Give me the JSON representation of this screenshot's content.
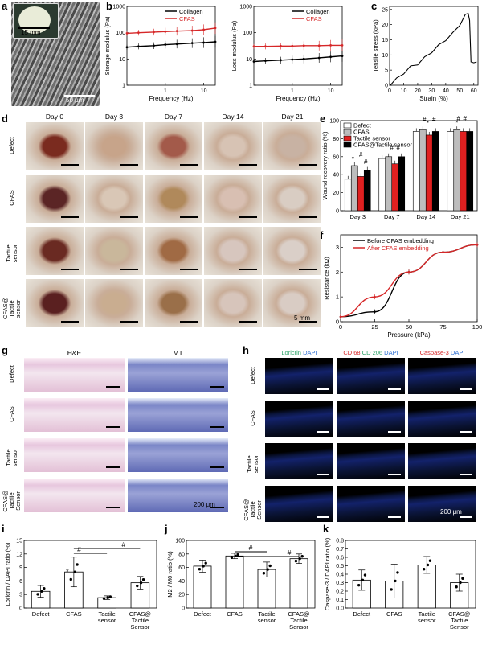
{
  "panel_labels": [
    "a",
    "b",
    "c",
    "d",
    "e",
    "f",
    "g",
    "h",
    "i",
    "j",
    "k"
  ],
  "panel_a": {
    "inset_scale": "15 mm",
    "scale": "50 μm"
  },
  "panel_d": {
    "columns": [
      "Day 0",
      "Day 3",
      "Day 7",
      "Day 14",
      "Day 21"
    ],
    "rows": [
      "Defect",
      "CFAS",
      "Tactile sensor",
      "CFAS@ Tactile sensor"
    ],
    "scale": "5 mm"
  },
  "panel_g": {
    "columns": [
      "H&E",
      "MT"
    ],
    "rows": [
      "Defect",
      "CFAS",
      "Tactile sensor",
      "CFAS@ Tactile Sensor"
    ],
    "scale": "200 μm"
  },
  "panel_h": {
    "col1": [
      "Loricrin",
      "DAPI"
    ],
    "col2": [
      "CD 68",
      "CD 206",
      "DAPI"
    ],
    "col3": [
      "Caspase-3",
      "DAPI"
    ],
    "rows": [
      "Defect",
      "CFAS",
      "Tactile sensor",
      "CFAS@ Tactile Sensor"
    ],
    "scale": "200 μm"
  },
  "chart_data": [
    {
      "panel": "b-left",
      "type": "line",
      "xlabel": "Frequency (Hz)",
      "ylabel": "Storage modulus (Pa)",
      "xscale": "log",
      "yscale": "log",
      "xlim": [
        0.1,
        20
      ],
      "ylim": [
        1,
        1000
      ],
      "x_ticks": [
        "1",
        "10"
      ],
      "y_ticks": [
        "1",
        "10",
        "100",
        "1000"
      ],
      "legend": [
        "Collagen",
        "CFAS"
      ],
      "legend_position": "top-right",
      "series": [
        {
          "name": "Collagen",
          "color": "#000000",
          "x": [
            0.1,
            0.2,
            0.5,
            1,
            2,
            5,
            10,
            20
          ],
          "y": [
            28,
            30,
            32,
            35,
            37,
            40,
            42,
            45
          ]
        },
        {
          "name": "CFAS",
          "color": "#d62728",
          "x": [
            0.1,
            0.2,
            0.5,
            1,
            2,
            5,
            10,
            20
          ],
          "y": [
            95,
            100,
            105,
            110,
            115,
            120,
            130,
            150
          ]
        }
      ]
    },
    {
      "panel": "b-right",
      "type": "line",
      "xlabel": "Frequency (Hz)",
      "ylabel": "Loss modulus (Pa)",
      "xscale": "log",
      "yscale": "log",
      "xlim": [
        0.1,
        20
      ],
      "ylim": [
        1,
        1000
      ],
      "x_ticks": [
        "1",
        "10"
      ],
      "y_ticks": [
        "1",
        "10",
        "100",
        "1000"
      ],
      "legend": [
        "Collagen",
        "CFAS"
      ],
      "legend_position": "top-right",
      "series": [
        {
          "name": "Collagen",
          "color": "#000000",
          "x": [
            0.1,
            0.2,
            0.5,
            1,
            2,
            5,
            10,
            20
          ],
          "y": [
            8,
            8.5,
            9,
            9.5,
            10,
            11,
            12,
            13
          ]
        },
        {
          "name": "CFAS",
          "color": "#d62728",
          "x": [
            0.1,
            0.2,
            0.5,
            1,
            2,
            5,
            10,
            20
          ],
          "y": [
            30,
            30,
            31,
            31,
            32,
            32,
            33,
            33
          ]
        }
      ]
    },
    {
      "panel": "c",
      "type": "line",
      "xlabel": "Strain (%)",
      "ylabel": "Tensile stress (kPa)",
      "xlim": [
        0,
        63
      ],
      "ylim": [
        0,
        26
      ],
      "x_ticks": [
        "0",
        "10",
        "20",
        "30",
        "40",
        "50",
        "60"
      ],
      "y_ticks": [
        "0",
        "5",
        "10",
        "15",
        "20",
        "25"
      ],
      "series": [
        {
          "name": "",
          "color": "#000000",
          "x": [
            0,
            5,
            10,
            15,
            20,
            25,
            30,
            35,
            40,
            45,
            50,
            54,
            56,
            57,
            58,
            60,
            62
          ],
          "y": [
            0,
            2,
            4,
            6,
            7,
            9,
            11,
            13,
            15,
            17,
            20,
            23,
            24,
            21,
            8,
            7,
            8
          ]
        }
      ]
    },
    {
      "panel": "e",
      "type": "bar",
      "ylabel": "Wound recovery ratio (%)",
      "ylim": [
        0,
        100
      ],
      "y_ticks": [
        "0",
        "20",
        "40",
        "60",
        "80",
        "100"
      ],
      "categories": [
        "Day 3",
        "Day 7",
        "Day 14",
        "Day 21"
      ],
      "legend": [
        "Defect",
        "CFAS",
        "Tactile sensor",
        "CFAS@Tactile sensor"
      ],
      "legend_position": "top-left",
      "series": [
        {
          "name": "Defect",
          "color": "#ffffff",
          "values": [
            35,
            58,
            88,
            88
          ]
        },
        {
          "name": "CFAS",
          "color": "#bdbdbd",
          "values": [
            50,
            60,
            90,
            90
          ]
        },
        {
          "name": "Tactile sensor",
          "color": "#e02020",
          "values": [
            38,
            52,
            84,
            88
          ]
        },
        {
          "name": "CFAS@Tactile sensor",
          "color": "#000000",
          "values": [
            45,
            60,
            88,
            88
          ]
        }
      ],
      "annotations": [
        "*",
        "#",
        "#",
        "#",
        "#",
        "#",
        "*",
        "#",
        "#",
        "*",
        "#"
      ]
    },
    {
      "panel": "f",
      "type": "line",
      "xlabel": "Pressure (kPa)",
      "ylabel": "Resistance (kΩ)",
      "xlim": [
        0,
        100
      ],
      "ylim": [
        0,
        3.5
      ],
      "x_ticks": [
        "0",
        "25",
        "50",
        "75",
        "100"
      ],
      "y_ticks": [
        "0",
        "1",
        "2",
        "3"
      ],
      "legend": [
        "Before CFAS embedding",
        "After CFAS embedding"
      ],
      "legend_position": "top-left",
      "series": [
        {
          "name": "Before CFAS embedding",
          "color": "#000000",
          "x": [
            0,
            25,
            50,
            75,
            100
          ],
          "y": [
            0.2,
            0.4,
            2.0,
            2.8,
            3.1
          ]
        },
        {
          "name": "After CFAS embedding",
          "color": "#d62728",
          "x": [
            0,
            25,
            50,
            75,
            100
          ],
          "y": [
            0.2,
            1.0,
            2.0,
            2.8,
            3.1
          ]
        }
      ]
    },
    {
      "panel": "i",
      "type": "bar",
      "ylabel": "Loricrin / DAPI ratio (%)",
      "ylim": [
        0,
        15
      ],
      "y_ticks": [
        "0",
        "3",
        "6",
        "9",
        "12",
        "15"
      ],
      "categories": [
        "Defect",
        "CFAS",
        "Tactile sensor",
        "CFAS@ Tactile Sensor"
      ],
      "values": [
        3.7,
        8.0,
        2.3,
        5.6
      ],
      "errors": [
        1.3,
        3.3,
        0.4,
        1.4
      ],
      "annotations": [
        "*",
        "#",
        "#"
      ]
    },
    {
      "panel": "j",
      "type": "bar",
      "ylabel": "M2 / M0 ratio (%)",
      "ylim": [
        0,
        100
      ],
      "y_ticks": [
        "0",
        "20",
        "40",
        "60",
        "80",
        "100"
      ],
      "categories": [
        "Defect",
        "CFAS",
        "Tactile sensor",
        "CFAS@ Tactile Sensor"
      ],
      "values": [
        62,
        77,
        57,
        73
      ],
      "errors": [
        9,
        4,
        11,
        7
      ],
      "annotations": [
        "#",
        "#"
      ]
    },
    {
      "panel": "k",
      "type": "bar",
      "ylabel": "Caspase-3 / DAPI ratio (%)",
      "ylim": [
        0,
        0.8
      ],
      "y_ticks": [
        "0.0",
        "0.1",
        "0.2",
        "0.3",
        "0.4",
        "0.5",
        "0.6",
        "0.7",
        "0.8"
      ],
      "categories": [
        "Defect",
        "CFAS",
        "Tactile sensor",
        "CFAS@ Tactile Sensor"
      ],
      "values": [
        0.33,
        0.32,
        0.51,
        0.3
      ],
      "errors": [
        0.12,
        0.2,
        0.1,
        0.1
      ]
    }
  ]
}
